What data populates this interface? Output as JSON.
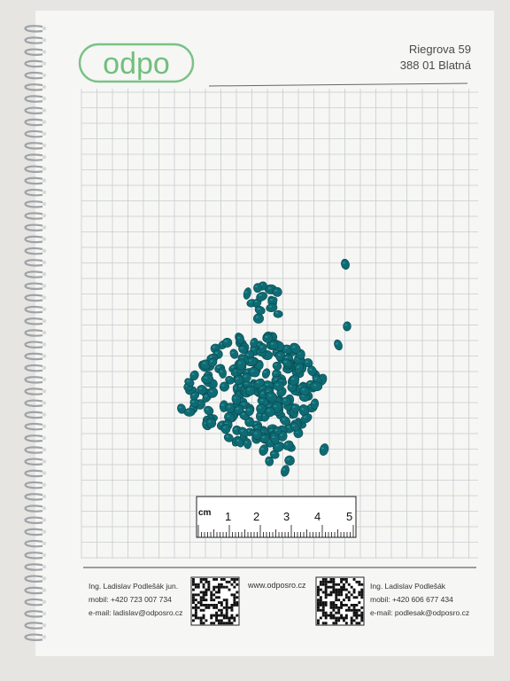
{
  "logo": {
    "text": "odpo",
    "color": "#5bb56a"
  },
  "address": {
    "street": "Riegrova 59",
    "city": "388 01 Blatná"
  },
  "ruler": {
    "unit": "cm",
    "labels": [
      "1",
      "2",
      "3",
      "4",
      "5"
    ]
  },
  "footer": {
    "left": {
      "name": "Ing. Ladislav Podlešák jun.",
      "mobile": "mobil: +420 723 007 734",
      "email": "e-mail: ladislav@odposro.cz"
    },
    "website": "www.odposro.cz",
    "right": {
      "name": "Ing. Ladislav Podlešák",
      "mobile": "mobil: +420 606 677 434",
      "email": "e-mail: podlesak@odposro.cz"
    }
  },
  "colors": {
    "bead": "#0e6b73",
    "grid": "#c7ccd0",
    "paper": "#f6f6f4",
    "binding": "#9ea3a8"
  }
}
